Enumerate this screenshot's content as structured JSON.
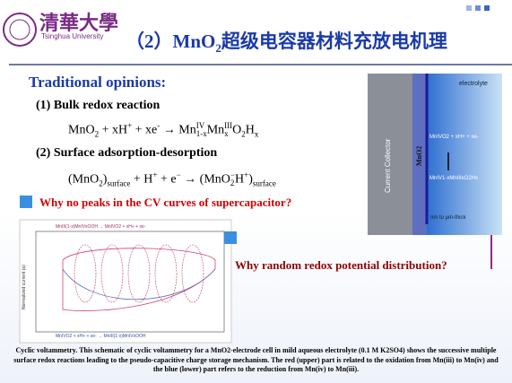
{
  "header": {
    "logo_cn": "清華大學",
    "logo_en": "Tsinghua University",
    "title": {
      "prefix": "（2）MnO",
      "sub": "2",
      "suffix": "超级电容器材料充放电机理"
    }
  },
  "heading": "Traditional opinions:",
  "items": [
    {
      "label": "(1) Bulk redox reaction",
      "segments": [
        {
          "t": "MnO",
          "sub": "2"
        },
        {
          "t": " + xH"
        },
        {
          "t": "",
          "sup": "+"
        },
        {
          "t": " + xe"
        },
        {
          "t": "",
          "sup": "-"
        },
        {
          "t": "  →  Mn",
          "sup": "IV",
          "sub": "1-x"
        },
        {
          "t": "Mn",
          "sup": "III",
          "sub": "x"
        },
        {
          "t": "O",
          "sub": "2"
        },
        {
          "t": "H",
          "sub": "x"
        }
      ]
    },
    {
      "label": "(2) Surface adsorption-desorption",
      "segments": [
        {
          "t": "(MnO",
          "sub": "2"
        },
        {
          "t": ")",
          "sub": "surface"
        },
        {
          "t": " + H"
        },
        {
          "t": "",
          "sup": "+"
        },
        {
          "t": " + e"
        },
        {
          "t": "",
          "sup": "−"
        },
        {
          "t": "  →  (MnO"
        },
        {
          "t": "",
          "sup": "−",
          "sub": "2"
        },
        {
          "t": "H"
        },
        {
          "t": "",
          "sup": "+"
        },
        {
          "t": ")",
          "sub": "surface"
        }
      ]
    }
  ],
  "question1": "Why no peaks in the CV curves of supercapacitor?",
  "question2": "Why random redox potential distribution?",
  "figure": {
    "collector": "Current Collector",
    "oxide": "MnO2",
    "electrolyte": "electrolyte",
    "reactant": "MnIVO2 + xH+ + xe-",
    "product": "MnIV1-xMnIIIxO2Hx",
    "thickness": "nm to µm-thick"
  },
  "cv": {
    "ylabel": "Normalized current (a)",
    "top": "MnIII(1-x)MnIVxOOH → MnIVO2 + xH+ + xe-",
    "bottom": "MnIVO2 + xH+ + xe- → MnIII(1-x)MnIVxOOH"
  },
  "caption": "Cyclic voltammetry. This schematic of cyclic voltammetry for a MnO2-electrode cell in mild aqueous electrolyte (0.1 M K2SO4) shows the successive multiple surface redox reactions leading to the pseudo-capacitive charge storage mechanism. The red (upper) part is related to the oxidation from Mn(iii) to Mn(iv) and the blue (lower) part refers to the reduction from Mn(iv) to Mn(iii)."
}
